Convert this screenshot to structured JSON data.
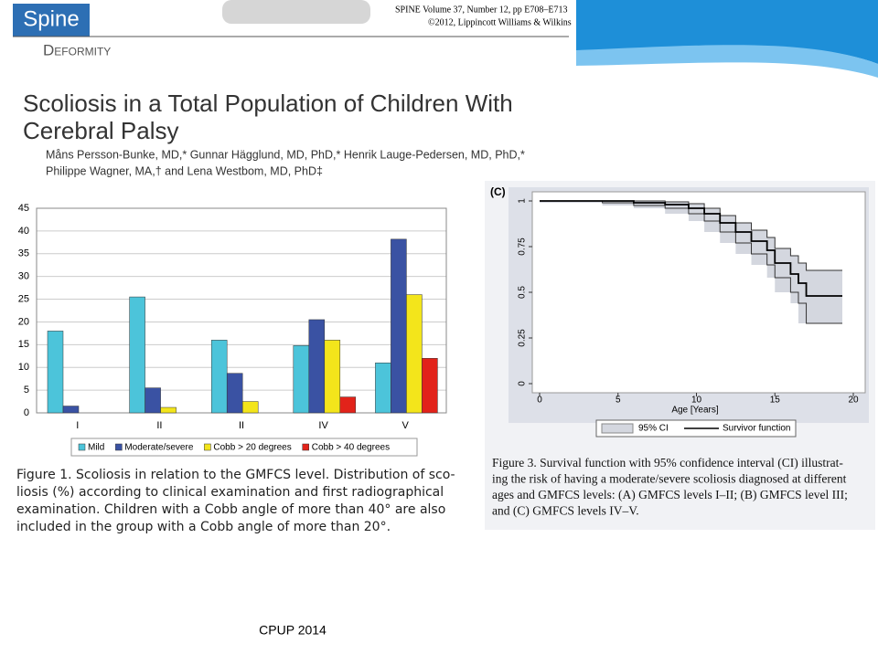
{
  "header": {
    "logo": "Spine",
    "section": "Deformity",
    "journal": [
      "SPINE Volume 37, Number 12, pp E708–E713",
      "©2012, Lippincott Williams & Wilkins"
    ]
  },
  "title_lines": [
    "Scoliosis in a Total Population of Children With",
    "Cerebral Palsy"
  ],
  "author_lines": [
    "Måns Persson-Bunke, MD,* Gunnar Hägglund, MD, PhD,* Henrik Lauge-Pedersen, MD, PhD,*",
    "Philippe Wagner, MA,† and Lena Westbom, MD, PhD‡"
  ],
  "chart_data": [
    {
      "type": "bar",
      "categories": [
        "I",
        "II",
        "II",
        "IV",
        "V"
      ],
      "series": [
        {
          "name": "Mild",
          "color": "#4cc4da",
          "values": [
            18,
            25.5,
            16,
            14.8,
            11
          ]
        },
        {
          "name": "Moderate/severe",
          "color": "#3a52a3",
          "values": [
            1.5,
            5.5,
            8.7,
            20.5,
            38.2
          ]
        },
        {
          "name": "Cobb > 20 degrees",
          "color": "#f3e51b",
          "values": [
            null,
            1.2,
            2.5,
            16,
            26
          ]
        },
        {
          "name": "Cobb > 40 degrees",
          "color": "#e2231a",
          "values": [
            null,
            null,
            null,
            3.5,
            12
          ]
        }
      ],
      "ylim": [
        0,
        45
      ],
      "yticks": [
        0,
        5,
        10,
        15,
        20,
        25,
        30,
        35,
        40,
        45
      ],
      "grid": true
    },
    {
      "type": "line",
      "label": "(C)",
      "xlabel": "Age [Years]",
      "x": [
        0,
        4,
        6,
        8,
        9.5,
        10.5,
        11.5,
        12.5,
        13.5,
        14.5,
        15,
        16,
        16.5,
        17,
        19.3
      ],
      "series": [
        {
          "name": "Survivor function",
          "color": "#000000",
          "values": [
            1,
            1,
            0.99,
            0.98,
            0.96,
            0.93,
            0.88,
            0.83,
            0.78,
            0.73,
            0.66,
            0.6,
            0.55,
            0.48,
            0.48
          ]
        }
      ],
      "ci": {
        "name": "95% CI",
        "color": "#d4d7df",
        "upper": [
          1,
          1,
          1,
          0.995,
          0.985,
          0.96,
          0.92,
          0.88,
          0.84,
          0.8,
          0.74,
          0.7,
          0.66,
          0.62,
          0.62
        ],
        "lower": [
          1,
          0.99,
          0.975,
          0.96,
          0.93,
          0.89,
          0.83,
          0.77,
          0.71,
          0.65,
          0.58,
          0.5,
          0.44,
          0.33,
          0.33
        ]
      },
      "xlim": [
        0,
        20
      ],
      "xticks": [
        0,
        5,
        10,
        15,
        20
      ],
      "ylim": [
        0,
        1
      ],
      "yticks": [
        0,
        0.25,
        0.5,
        0.75,
        1
      ]
    }
  ],
  "figure1_caption": [
    "Figure 1. Scoliosis in relation to the GMFCS level. Distribution of sco-",
    "liosis (%) according to clinical examination and first radiographical",
    "examination. Children with a Cobb angle of more than 40° are also",
    "included in the group with a Cobb angle of more than 20°."
  ],
  "figure3_caption": [
    "Figure 3. Survival function with 95% confidence interval (CI) illustrat-",
    "ing the risk of having a moderate/severe scoliosis diagnosed at different",
    "ages and GMFCS levels: (A) GMFCS levels I–II; (B) GMFCS level III;",
    "and (C) GMFCS levels IV–V."
  ],
  "footer": "CPUP 2014"
}
